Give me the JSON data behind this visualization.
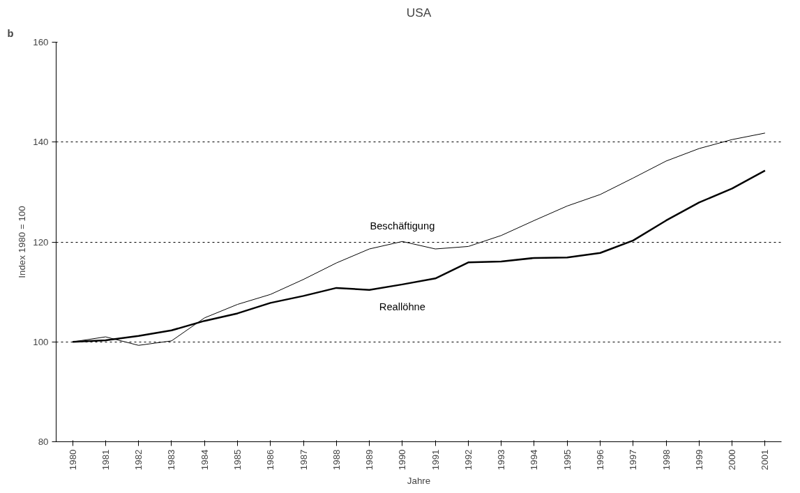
{
  "chart_data": {
    "type": "line",
    "title": "USA",
    "xlabel": "Jahre",
    "ylabel": "Index 1980 = 100",
    "annotations": [
      "b"
    ],
    "categories": [
      "1980",
      "1981",
      "1982",
      "1983",
      "1984",
      "1985",
      "1986",
      "1987",
      "1988",
      "1989",
      "1990",
      "1991",
      "1992",
      "1993",
      "1994",
      "1995",
      "1996",
      "1997",
      "1998",
      "1999",
      "2000",
      "2001"
    ],
    "series": [
      {
        "name": "Beschäftigung",
        "color": "#000000",
        "values": [
          100,
          101,
          99.3,
          100.2,
          104.8,
          107.5,
          109.5,
          112.5,
          115.8,
          118.6,
          120.1,
          118.6,
          119.1,
          121.3,
          124.3,
          127.2,
          129.5,
          132.8,
          136.2,
          138.7,
          140.5,
          141.8
        ]
      },
      {
        "name": "Reallöhne",
        "color": "#000000",
        "values": [
          100,
          100.3,
          101.2,
          102.3,
          104.2,
          105.7,
          107.8,
          109.2,
          110.8,
          110.4,
          111.5,
          112.7,
          115.9,
          116.1,
          116.8,
          116.9,
          117.8,
          120.3,
          124.3,
          127.9,
          130.7,
          134.3
        ]
      }
    ],
    "ylim": [
      80,
      160
    ],
    "yticks": [
      80,
      100,
      120,
      140,
      160
    ],
    "grid": "y",
    "marker": "none",
    "line_style": "solid"
  }
}
